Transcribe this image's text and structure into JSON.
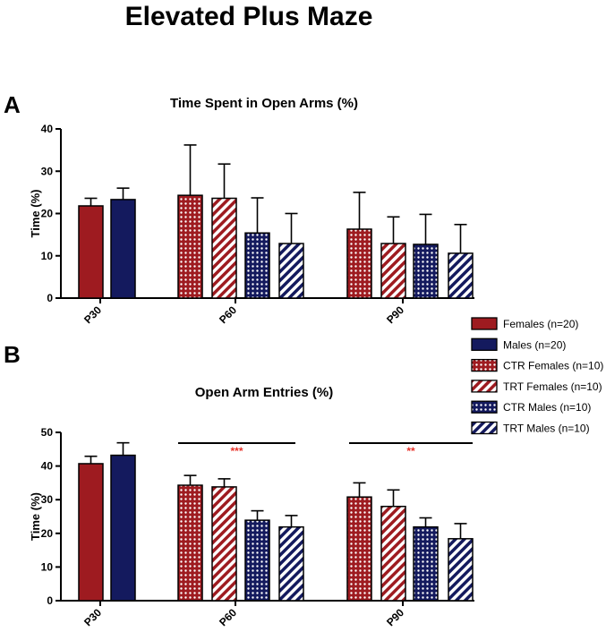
{
  "title": "Elevated Plus Maze",
  "colors": {
    "female": "#9e1b20",
    "male": "#141a5e",
    "bar_stroke": "#000000",
    "sig_star": "#e8332a"
  },
  "legend": [
    {
      "label": "Females (n=20)",
      "color": "#9e1b20",
      "pattern": "solid"
    },
    {
      "label": "Males (n=20)",
      "color": "#141a5e",
      "pattern": "solid"
    },
    {
      "label": "CTR Females (n=10)",
      "color": "#9e1b20",
      "pattern": "dots"
    },
    {
      "label": "TRT Females (n=10)",
      "color": "#9e1b20",
      "pattern": "stripes"
    },
    {
      "label": "CTR Males (n=10)",
      "color": "#141a5e",
      "pattern": "dots"
    },
    {
      "label": "TRT Males (n=10)",
      "color": "#141a5e",
      "pattern": "stripes"
    }
  ],
  "chart_data": [
    {
      "type": "bar",
      "panel": "A",
      "title": "Time Spent in Open Arms (%)",
      "ylabel": "Time (%)",
      "xlabel": "",
      "ylim": [
        0,
        40
      ],
      "yticks": [
        0,
        10,
        20,
        30,
        40
      ],
      "categories": [
        "P30",
        "P60",
        "P90"
      ],
      "bars": [
        {
          "category": "P30",
          "group": "Females (n=20)",
          "value": 21.8,
          "error": 1.8
        },
        {
          "category": "P30",
          "group": "Males (n=20)",
          "value": 23.3,
          "error": 2.7
        },
        {
          "category": "P60",
          "group": "CTR Females (n=10)",
          "value": 24.3,
          "error": 11.9
        },
        {
          "category": "P60",
          "group": "TRT Females (n=10)",
          "value": 23.6,
          "error": 8.1
        },
        {
          "category": "P60",
          "group": "CTR Males (n=10)",
          "value": 15.4,
          "error": 8.3
        },
        {
          "category": "P60",
          "group": "TRT Males (n=10)",
          "value": 12.9,
          "error": 7.1
        },
        {
          "category": "P90",
          "group": "CTR Females (n=10)",
          "value": 16.3,
          "error": 8.7
        },
        {
          "category": "P90",
          "group": "TRT Females (n=10)",
          "value": 12.9,
          "error": 6.3
        },
        {
          "category": "P90",
          "group": "CTR Males (n=10)",
          "value": 12.7,
          "error": 7.1
        },
        {
          "category": "P90",
          "group": "TRT Males (n=10)",
          "value": 10.6,
          "error": 6.8
        }
      ],
      "significance": []
    },
    {
      "type": "bar",
      "panel": "B",
      "title": "Open Arm Entries (%)",
      "ylabel": "Time (%)",
      "xlabel": "",
      "ylim": [
        0,
        50
      ],
      "yticks": [
        0,
        10,
        20,
        30,
        40,
        50
      ],
      "categories": [
        "P30",
        "P60",
        "P90"
      ],
      "bars": [
        {
          "category": "P30",
          "group": "Females (n=20)",
          "value": 40.7,
          "error": 2.2
        },
        {
          "category": "P30",
          "group": "Males (n=20)",
          "value": 43.2,
          "error": 3.7
        },
        {
          "category": "P60",
          "group": "CTR Females (n=10)",
          "value": 34.3,
          "error": 2.9
        },
        {
          "category": "P60",
          "group": "TRT Females (n=10)",
          "value": 33.8,
          "error": 2.4
        },
        {
          "category": "P60",
          "group": "CTR Males (n=10)",
          "value": 23.9,
          "error": 2.8
        },
        {
          "category": "P60",
          "group": "TRT Males (n=10)",
          "value": 21.9,
          "error": 3.4
        },
        {
          "category": "P90",
          "group": "CTR Females (n=10)",
          "value": 30.8,
          "error": 4.2
        },
        {
          "category": "P90",
          "group": "TRT Females (n=10)",
          "value": 28.0,
          "error": 4.9
        },
        {
          "category": "P90",
          "group": "CTR Males (n=10)",
          "value": 21.9,
          "error": 2.7
        },
        {
          "category": "P90",
          "group": "TRT Males (n=10)",
          "value": 18.4,
          "error": 4.5
        }
      ],
      "significance": [
        {
          "category": "P60",
          "label": "***"
        },
        {
          "category": "P90",
          "label": "**"
        }
      ]
    }
  ]
}
